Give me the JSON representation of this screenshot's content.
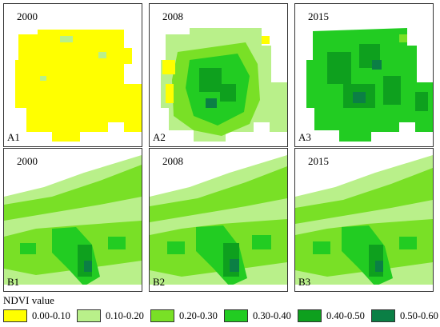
{
  "colors": {
    "c0": "#ffff00",
    "c1": "#b9f08a",
    "c2": "#79e026",
    "c3": "#22cc22",
    "c4": "#0ea01e",
    "c5": "#0b7f45"
  },
  "panels": [
    {
      "id": "A1",
      "year": "2000",
      "label": "A1"
    },
    {
      "id": "A2",
      "year": "2008",
      "label": "A2"
    },
    {
      "id": "A3",
      "year": "2015",
      "label": "A3"
    },
    {
      "id": "B1",
      "year": "2000",
      "label": "B1"
    },
    {
      "id": "B2",
      "year": "2008",
      "label": "B2"
    },
    {
      "id": "B3",
      "year": "2015",
      "label": "B3"
    }
  ],
  "legend": {
    "title": "NDVI value",
    "items": [
      {
        "label": "0.00-0.10",
        "color": "#ffff00"
      },
      {
        "label": "0.10-0.20",
        "color": "#b9f08a"
      },
      {
        "label": "0.20-0.30",
        "color": "#79e026"
      },
      {
        "label": "0.30-0.40",
        "color": "#22cc22"
      },
      {
        "label": "0.40-0.50",
        "color": "#0ea01e"
      },
      {
        "label": "0.50-0.60",
        "color": "#0b7f45"
      }
    ]
  }
}
